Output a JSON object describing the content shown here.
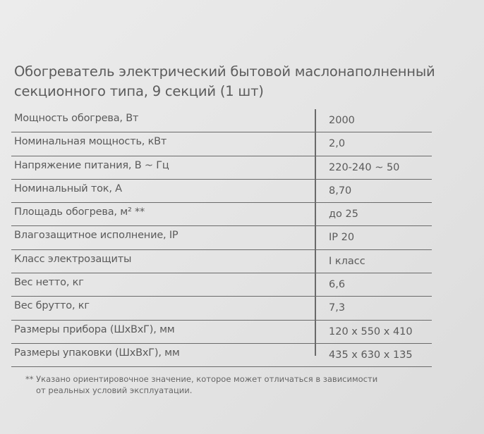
{
  "title_line1": "Обогреватель электрический бытовой маслонаполненный",
  "title_line2": "секционного типа, 9 секций (1 шт)",
  "specs": [
    {
      "label": "Мощность обогрева, Вт",
      "value": "2000"
    },
    {
      "label": "Номинальная мощность, кВт",
      "value": "2,0"
    },
    {
      "label": "Напряжение питания, В ~ Гц",
      "value": "220-240 ~ 50"
    },
    {
      "label": "Номинальный ток, А",
      "value": "8,70"
    },
    {
      "label": "Площадь обогрева, м² **",
      "value": "до 25"
    },
    {
      "label": "Влагозащитное исполнение, IP",
      "value": "IP 20"
    },
    {
      "label": "Класс электрозащиты",
      "value": "I класс"
    },
    {
      "label": "Вес нетто, кг",
      "value": "6,6"
    },
    {
      "label": "Вес брутто, кг",
      "value": "7,3"
    },
    {
      "label": "Размеры прибора (ШхВхГ),  мм",
      "value": "120 x 550 x 410"
    },
    {
      "label": "Размеры упаковки (ШхВхГ),  мм",
      "value": "435 x 630 x 135"
    }
  ],
  "footnote_line1": "** Указано ориентировочное значение, которое может отличаться в зависимости",
  "footnote_line2": "от реальных условий эксплуатации."
}
